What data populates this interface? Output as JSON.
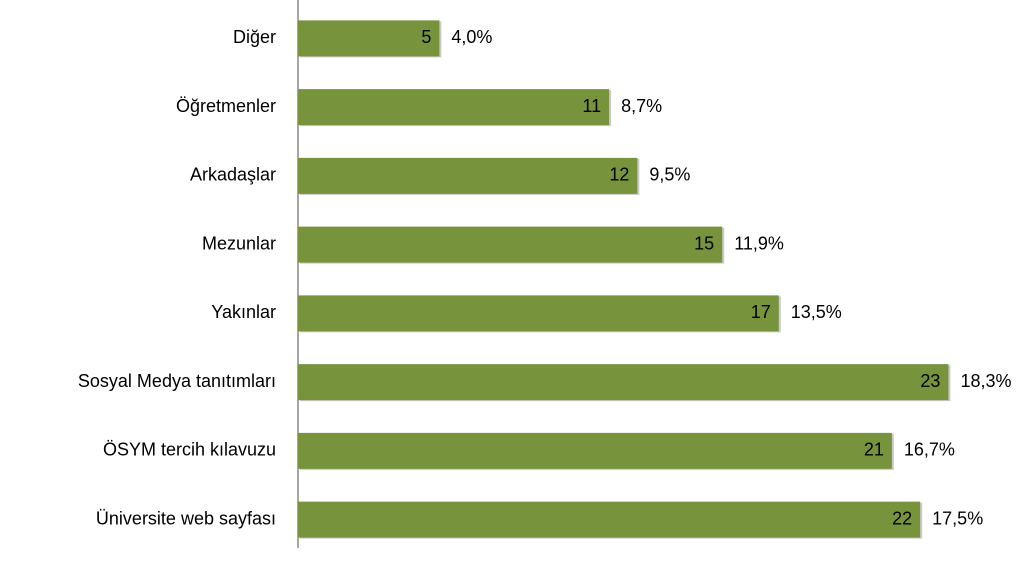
{
  "chart_data": {
    "type": "bar",
    "orientation": "horizontal",
    "categories": [
      "Diğer",
      "Öğretmenler",
      "Arkadaşlar",
      "Mezunlar",
      "Yakınlar",
      "Sosyal Medya tanıtımları",
      "ÖSYM tercih kılavuzu",
      "Üniversite web sayfası"
    ],
    "values": [
      5,
      11,
      12,
      15,
      17,
      23,
      21,
      22
    ],
    "share_labels": [
      "4,0%",
      "8,7%",
      "9,5%",
      "11,9%",
      "13,5%",
      "18,3%",
      "16,7%",
      "17,5%"
    ],
    "color": "#77933c",
    "xlim": [
      0,
      25
    ]
  }
}
